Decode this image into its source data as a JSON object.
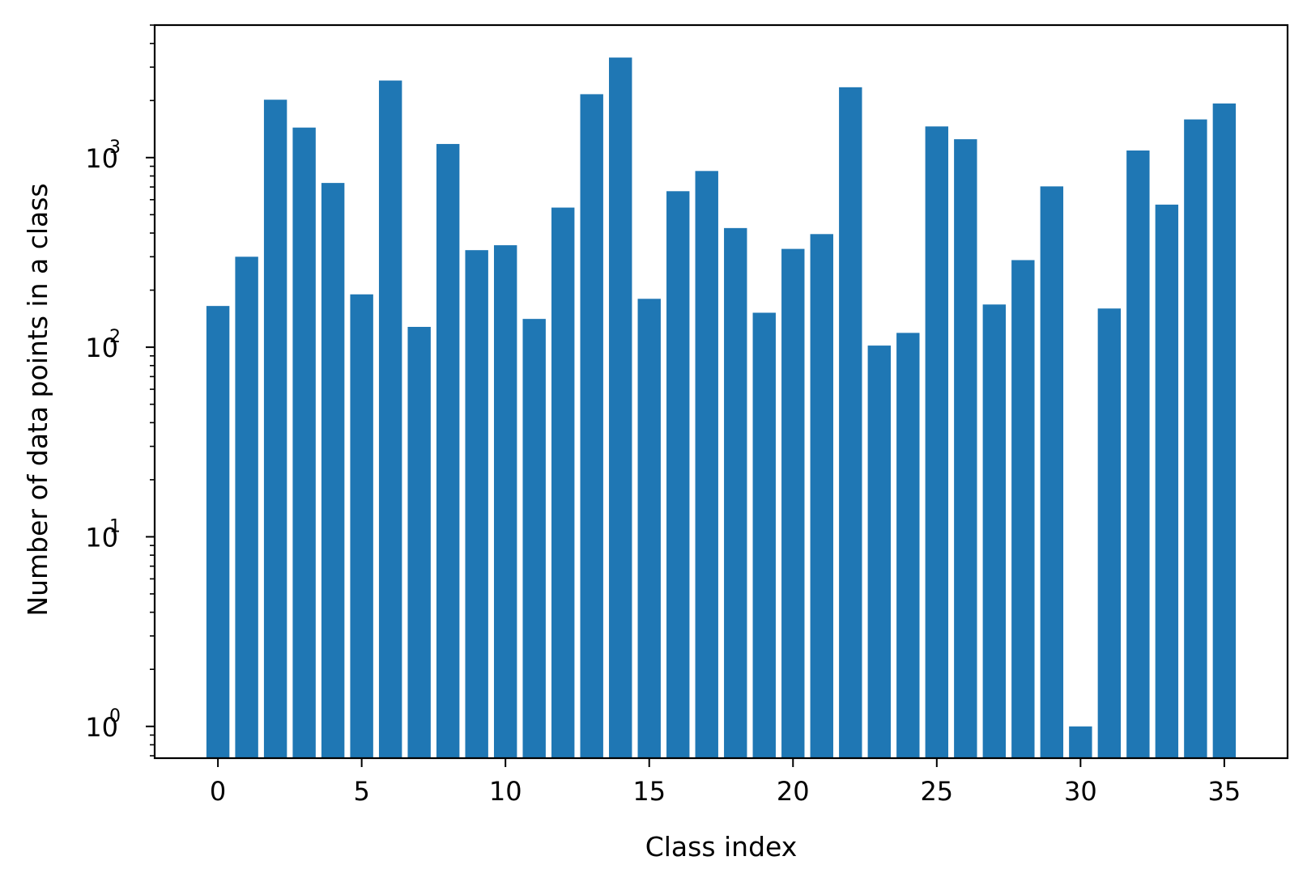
{
  "chart_data": {
    "type": "bar",
    "title": "",
    "xlabel": "Class index",
    "ylabel": "Number of data points in a class",
    "yscale": "log",
    "ylim": [
      0.68,
      5000
    ],
    "xlim": [
      -2.2,
      37.2
    ],
    "grid": false,
    "bar_color": "#1f77b4",
    "x": [
      0,
      1,
      2,
      3,
      4,
      5,
      6,
      7,
      8,
      9,
      10,
      11,
      12,
      13,
      14,
      15,
      16,
      17,
      18,
      19,
      20,
      21,
      22,
      23,
      24,
      25,
      26,
      27,
      28,
      29,
      30,
      31,
      32,
      33,
      34,
      35
    ],
    "values": [
      165,
      300,
      2020,
      1440,
      735,
      190,
      2550,
      128,
      1180,
      325,
      345,
      141,
      545,
      2160,
      3370,
      180,
      665,
      850,
      425,
      152,
      330,
      395,
      2350,
      102,
      119,
      1460,
      1250,
      168,
      288,
      705,
      1,
      160,
      1090,
      565,
      1590,
      1930
    ],
    "x_ticks": [
      {
        "value": 0,
        "label": "0"
      },
      {
        "value": 5,
        "label": "5"
      },
      {
        "value": 10,
        "label": "10"
      },
      {
        "value": 15,
        "label": "15"
      },
      {
        "value": 20,
        "label": "20"
      },
      {
        "value": 25,
        "label": "25"
      },
      {
        "value": 30,
        "label": "30"
      },
      {
        "value": 35,
        "label": "35"
      }
    ],
    "y_ticks": [
      {
        "value": 1,
        "base": "10",
        "exponent": "0"
      },
      {
        "value": 10,
        "base": "10",
        "exponent": "1"
      },
      {
        "value": 100,
        "base": "10",
        "exponent": "2"
      },
      {
        "value": 1000,
        "base": "10",
        "exponent": "3"
      }
    ]
  }
}
